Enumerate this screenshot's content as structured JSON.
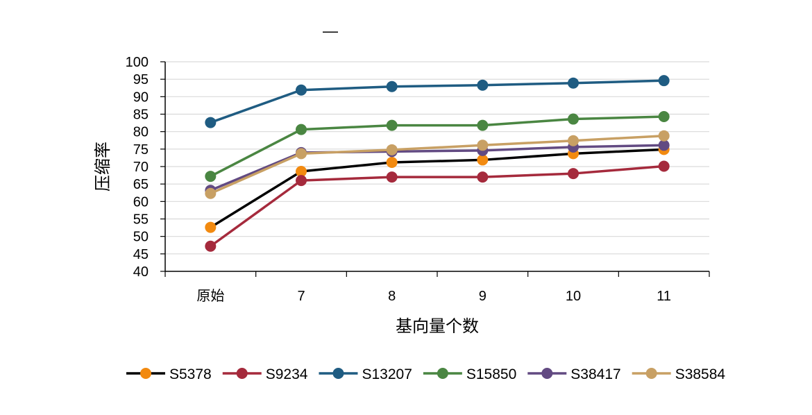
{
  "chart_data": {
    "type": "line",
    "title": "—",
    "xlabel": "基向量个数",
    "ylabel": "压缩率",
    "categories": [
      "原始",
      "7",
      "8",
      "9",
      "10",
      "11"
    ],
    "ylim": [
      40,
      100
    ],
    "yticks": [
      40,
      45,
      50,
      55,
      60,
      65,
      70,
      75,
      80,
      85,
      90,
      95,
      100
    ],
    "grid": true,
    "legend_position": "bottom",
    "series": [
      {
        "name": "S5378",
        "values": [
          52.6,
          68.6,
          71.2,
          71.9,
          73.7,
          74.9
        ],
        "line_color": "#000000",
        "marker_color": "#F28A10"
      },
      {
        "name": "S9234",
        "values": [
          47.2,
          66.0,
          67.0,
          67.0,
          68.0,
          70.1
        ],
        "line_color": "#A52A3C",
        "marker_color": "#A52A3C"
      },
      {
        "name": "S13207",
        "values": [
          82.6,
          91.9,
          92.9,
          93.3,
          93.9,
          94.6
        ],
        "line_color": "#1F5C82",
        "marker_color": "#1F5C82"
      },
      {
        "name": "S15850",
        "values": [
          67.2,
          80.6,
          81.8,
          81.8,
          83.6,
          84.3
        ],
        "line_color": "#4A8642",
        "marker_color": "#4A8642"
      },
      {
        "name": "S38417",
        "values": [
          63.2,
          74.0,
          74.3,
          74.6,
          75.6,
          76.1
        ],
        "line_color": "#624A82",
        "marker_color": "#624A82"
      },
      {
        "name": "S38584",
        "values": [
          62.3,
          73.7,
          74.8,
          76.1,
          77.4,
          78.8
        ],
        "line_color": "#C8A064",
        "marker_color": "#C8A064"
      }
    ]
  }
}
